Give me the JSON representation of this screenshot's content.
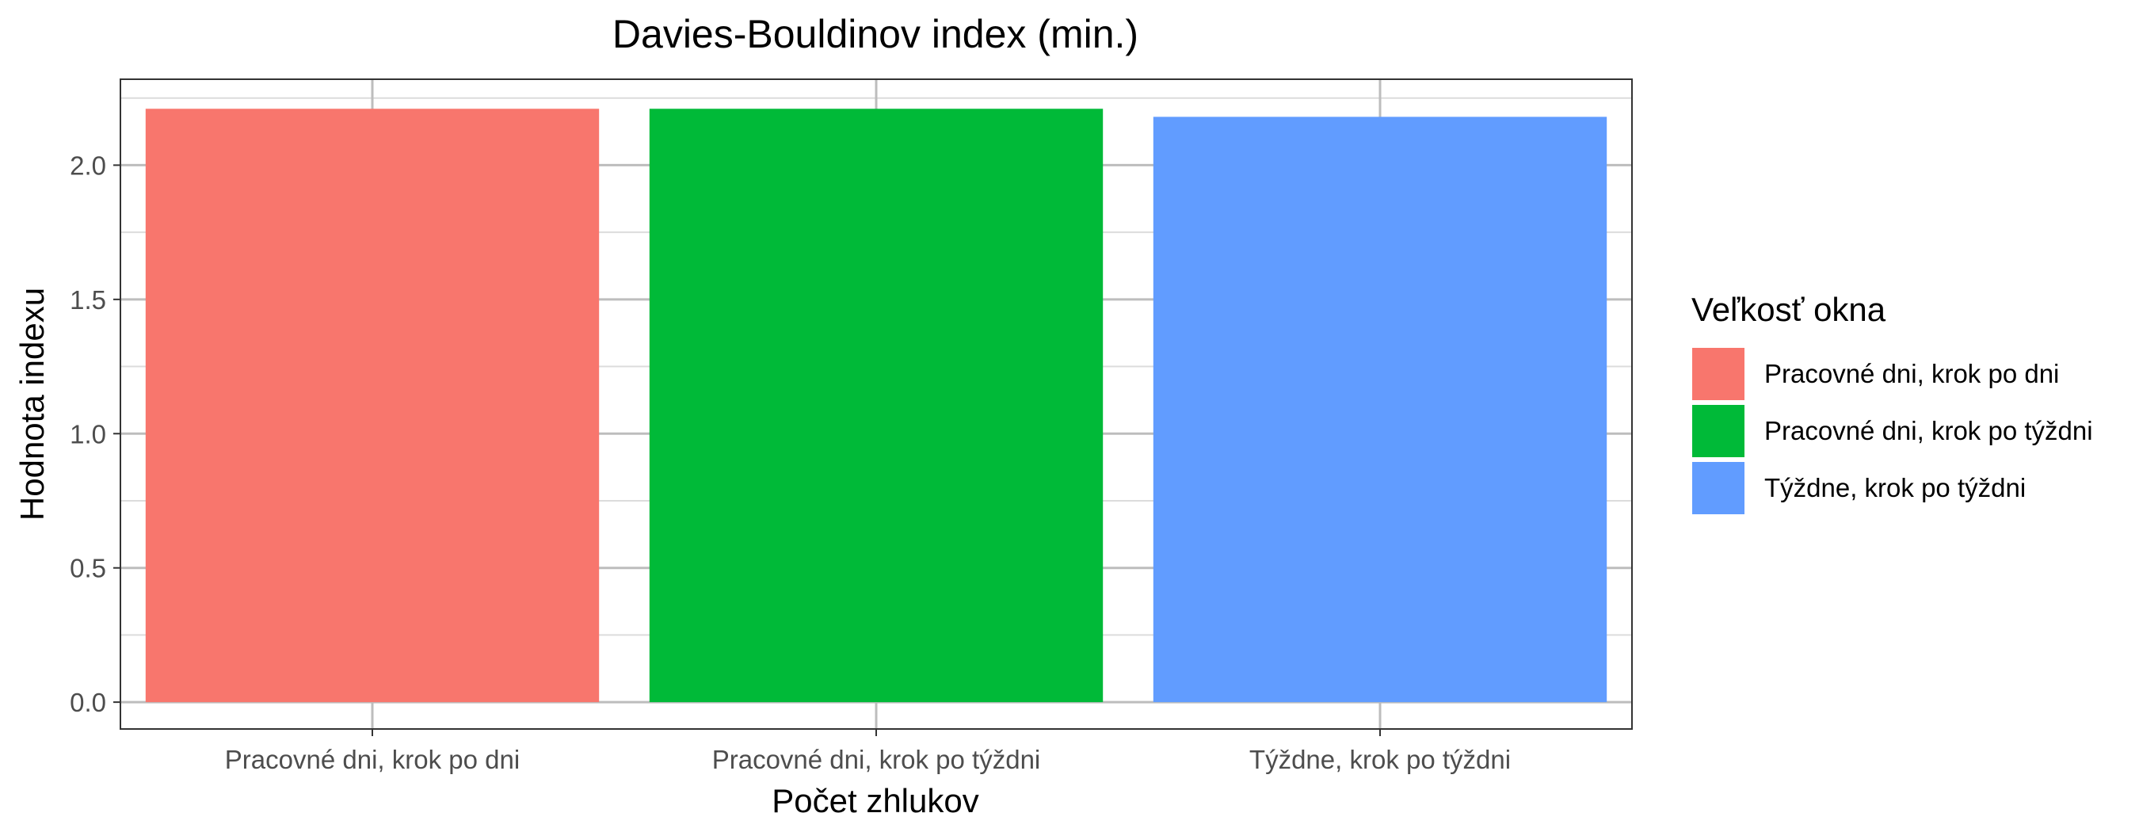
{
  "chart_data": {
    "type": "bar",
    "title": "Davies-Bouldinov index (min.)",
    "xlabel": "Počet zhlukov",
    "ylabel": "Hodnota indexu",
    "categories": [
      "Pracovné dni, krok po dni",
      "Pracovné dni, krok po týždni",
      "Týždne, krok po týždni"
    ],
    "values": [
      2.21,
      2.21,
      2.18
    ],
    "colors": [
      "#F8766D",
      "#00BA38",
      "#619CFF"
    ],
    "ylim": [
      -0.1,
      2.32
    ],
    "yticks": [
      0.0,
      0.5,
      1.0,
      1.5,
      2.0
    ],
    "ytick_labels": [
      "0.0",
      "0.5",
      "1.0",
      "1.5",
      "2.0"
    ],
    "grid": true,
    "legend": {
      "title": "Veľkosť okna",
      "placement": "right",
      "entries": [
        "Pracovné dni, krok po dni",
        "Pracovné dni, krok po týždni",
        "Týždne, krok po týždni"
      ]
    }
  }
}
